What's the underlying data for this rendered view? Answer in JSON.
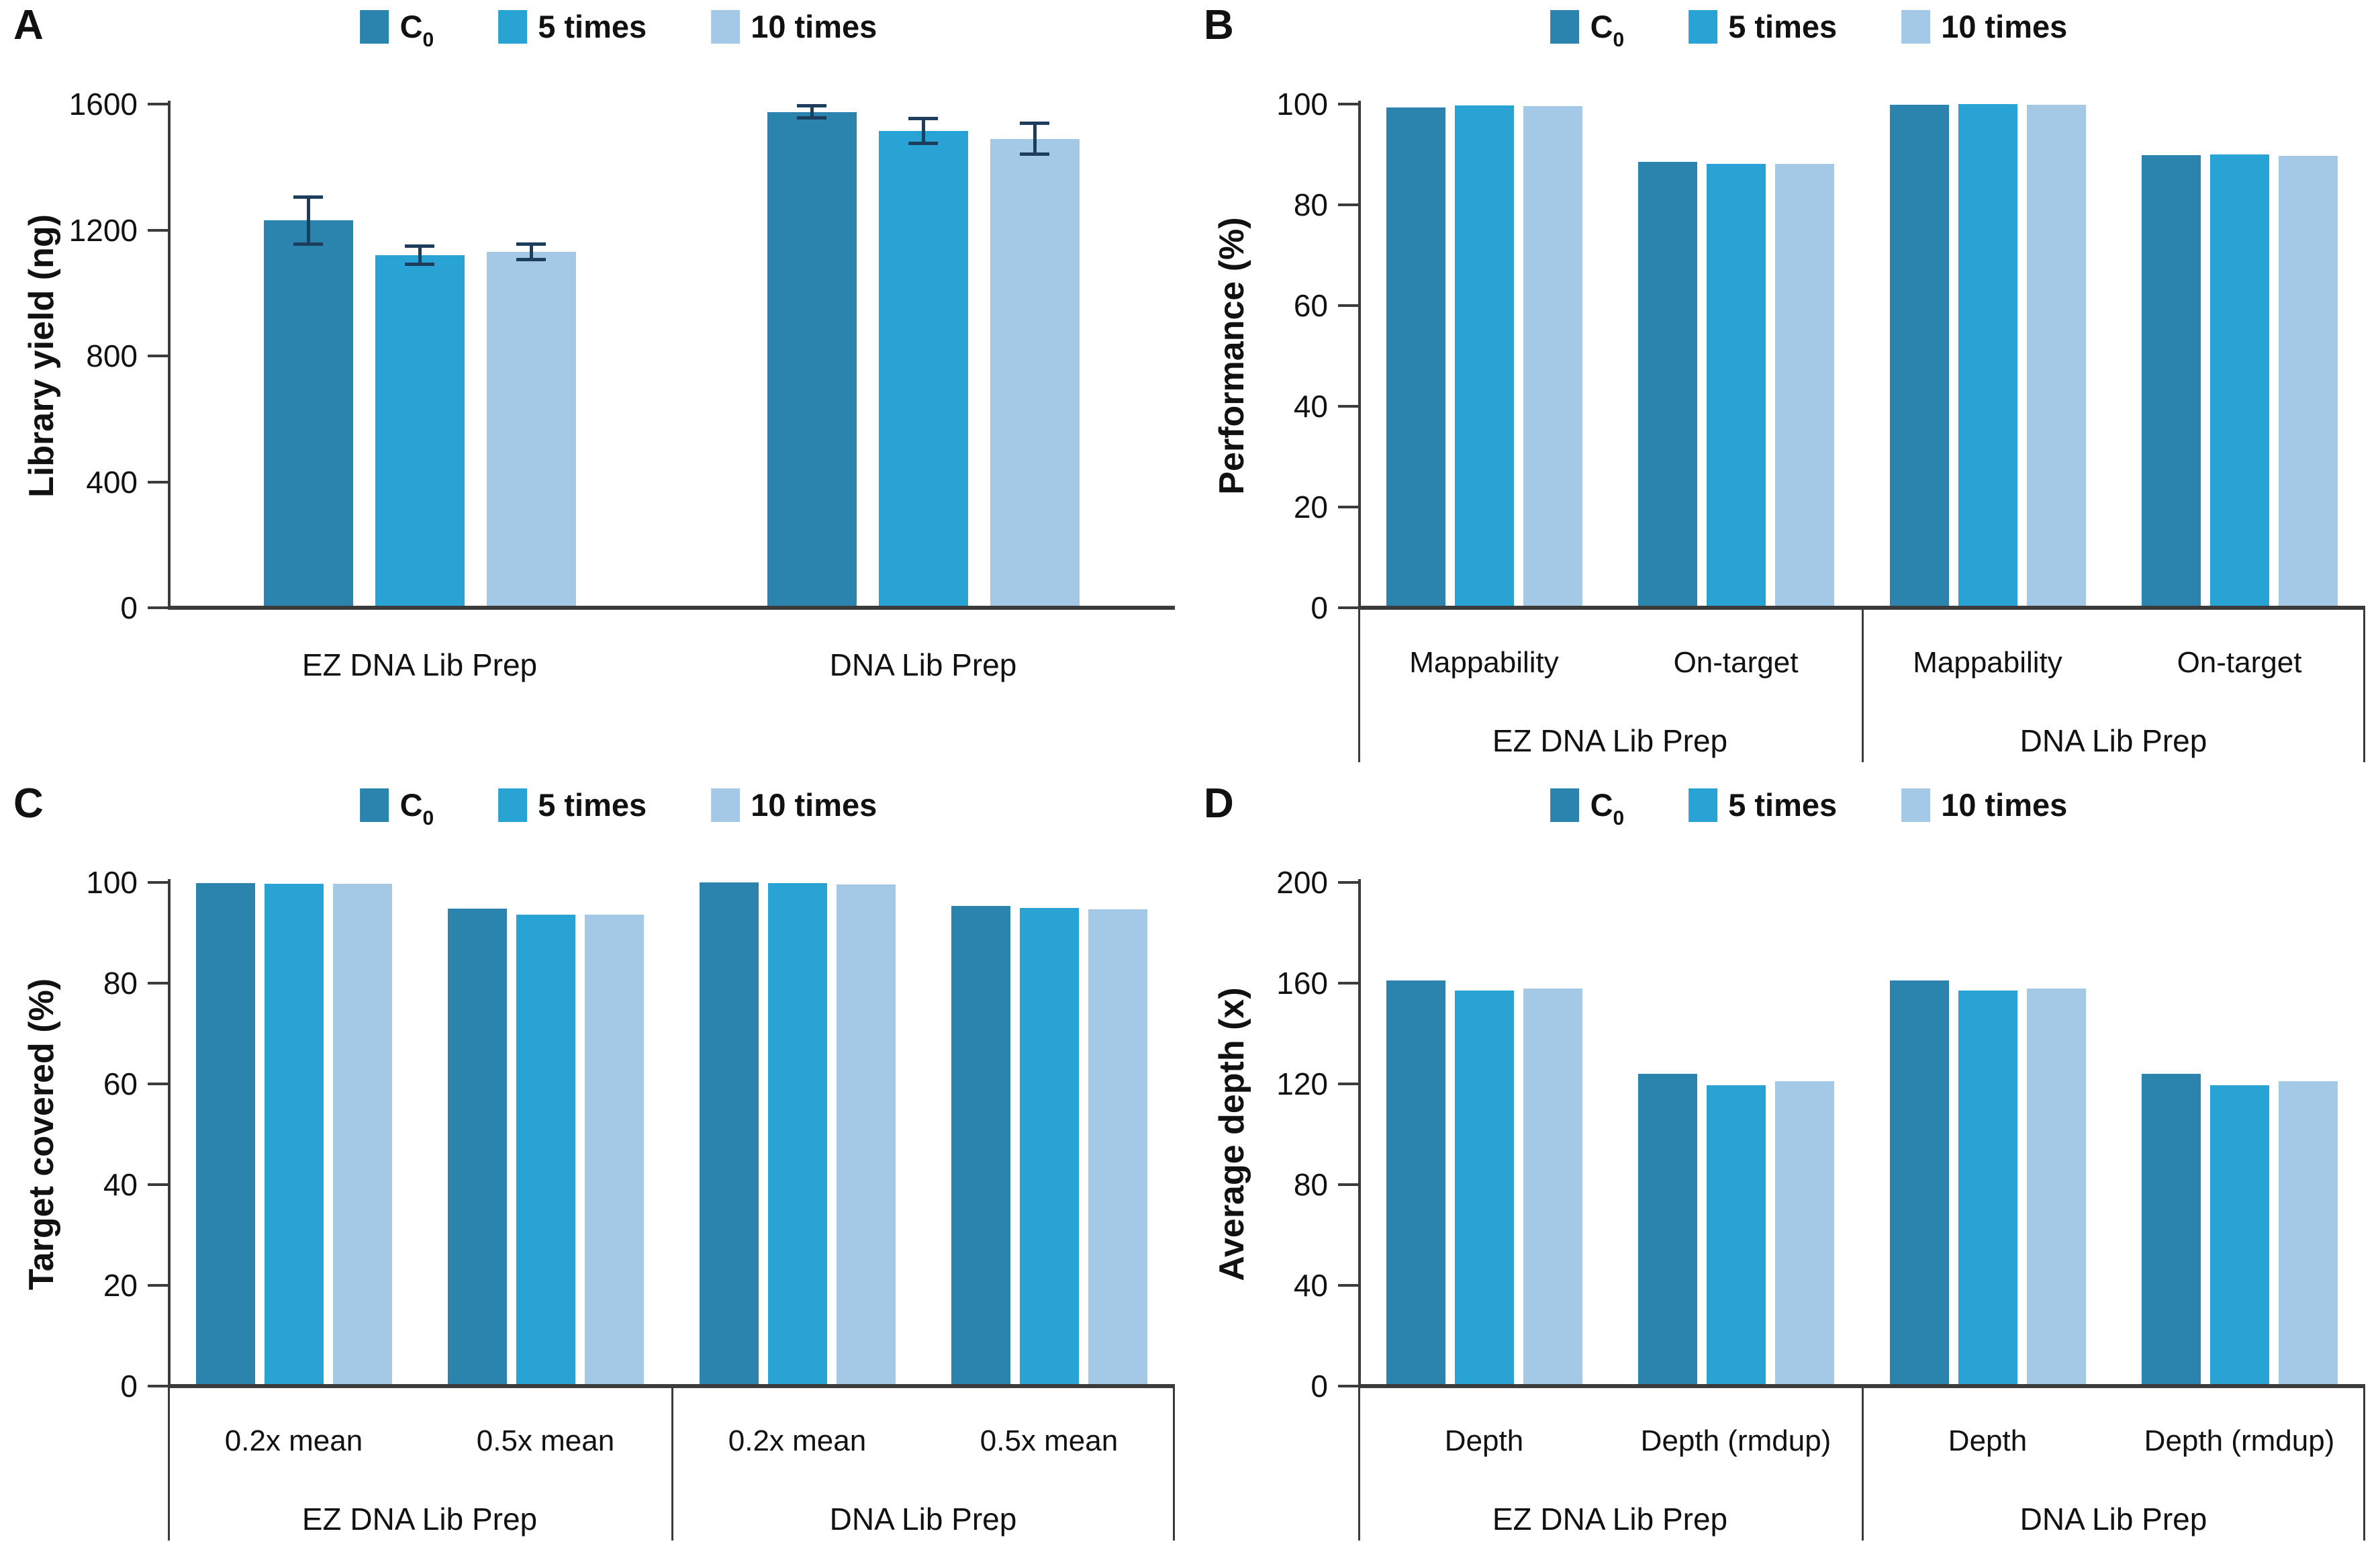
{
  "figure": {
    "background": "#ffffff"
  },
  "legend": {
    "items": [
      {
        "label": "C",
        "subscript": "0",
        "series": "c0"
      },
      {
        "label": "5 times",
        "subscript": "",
        "series": "5-times"
      },
      {
        "label": "10 times",
        "subscript": "",
        "series": "10-times"
      }
    ]
  },
  "style": {
    "series_colors": [
      "#2b84ae",
      "#29a2d4",
      "#a4c9e6"
    ],
    "axis_color": "#3b3b3b",
    "error_bar_color": "#1d3d5c",
    "text_color": "#111111"
  },
  "chart_data": [
    {
      "type": "bar",
      "panel": "A",
      "ylabel": "Library yield (ng)",
      "ylim": [
        0,
        1600
      ],
      "yticks": [
        "0",
        "400",
        "800",
        "1200",
        "1600"
      ],
      "legend_entries": [
        "C0",
        "5 times",
        "10 times"
      ],
      "grid": false,
      "legend_position": "top",
      "boxed_category_axis": false,
      "groups": [
        {
          "label": "EZ DNA Lib Prep",
          "categories": [
            {
              "label": "",
              "values": [
                1230,
                1120,
                1130
              ],
              "errors": [
                80,
                35,
                30
              ]
            }
          ]
        },
        {
          "label": "DNA Lib Prep",
          "categories": [
            {
              "label": "",
              "values": [
                1575,
                1515,
                1490
              ],
              "errors": [
                25,
                45,
                55
              ]
            }
          ]
        }
      ]
    },
    {
      "type": "bar",
      "panel": "B",
      "ylabel": "Performance (%)",
      "ylim": [
        0,
        100
      ],
      "yticks": [
        "0",
        "20",
        "40",
        "60",
        "80",
        "100"
      ],
      "legend_entries": [
        "C0",
        "5 times",
        "10 times"
      ],
      "grid": false,
      "legend_position": "top",
      "boxed_category_axis": true,
      "groups": [
        {
          "label": "EZ DNA Lib Prep",
          "categories": [
            {
              "label": "Mappability",
              "values": [
                99.4,
                99.8,
                99.6
              ]
            },
            {
              "label": "On-target",
              "values": [
                88.6,
                88.2,
                88.2
              ]
            }
          ]
        },
        {
          "label": "DNA Lib Prep",
          "categories": [
            {
              "label": "Mappability",
              "values": [
                99.9,
                100,
                99.9
              ]
            },
            {
              "label": "On-target",
              "values": [
                89.9,
                90,
                89.8
              ]
            }
          ]
        }
      ]
    },
    {
      "type": "bar",
      "panel": "C",
      "ylabel": "Target covered (%)",
      "ylim": [
        0,
        100
      ],
      "yticks": [
        "0",
        "20",
        "40",
        "60",
        "80",
        "100"
      ],
      "legend_entries": [
        "C0",
        "5 times",
        "10 times"
      ],
      "grid": false,
      "legend_position": "top",
      "boxed_category_axis": true,
      "groups": [
        {
          "label": "EZ DNA Lib Prep",
          "categories": [
            {
              "label": "0.2x mean",
              "values": [
                99.9,
                99.8,
                99.7
              ]
            },
            {
              "label": "0.5x mean",
              "values": [
                94.8,
                93.6,
                93.6
              ]
            }
          ]
        },
        {
          "label": "DNA Lib Prep",
          "categories": [
            {
              "label": "0.2x mean",
              "values": [
                100,
                99.9,
                99.6
              ]
            },
            {
              "label": "0.5x mean",
              "values": [
                95.3,
                95.0,
                94.7
              ]
            }
          ]
        }
      ]
    },
    {
      "type": "bar",
      "panel": "D",
      "ylabel": "Average depth (x)",
      "ylim": [
        0,
        200
      ],
      "yticks": [
        "0",
        "40",
        "80",
        "120",
        "160",
        "200"
      ],
      "legend_entries": [
        "C0",
        "5 times",
        "10 times"
      ],
      "grid": false,
      "legend_position": "top",
      "boxed_category_axis": true,
      "groups": [
        {
          "label": "EZ DNA Lib Prep",
          "categories": [
            {
              "label": "Depth",
              "values": [
                161,
                157,
                158
              ]
            },
            {
              "label": "Depth (rmdup)",
              "values": [
                124,
                119.5,
                121
              ]
            }
          ]
        },
        {
          "label": "DNA Lib Prep",
          "categories": [
            {
              "label": "Depth",
              "values": [
                161,
                157,
                158
              ]
            },
            {
              "label": "Depth (rmdup)",
              "values": [
                124,
                119.5,
                121
              ]
            }
          ]
        }
      ]
    }
  ]
}
